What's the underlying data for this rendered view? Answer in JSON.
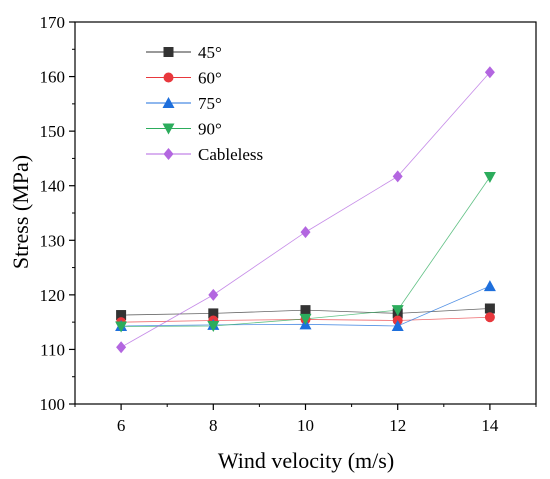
{
  "chart_data": {
    "type": "line",
    "title": "",
    "xlabel": "Wind velocity (m/s)",
    "ylabel": "Stress (MPa)",
    "xlim": [
      5,
      15
    ],
    "ylim": [
      100,
      170
    ],
    "xticks": [
      6,
      8,
      10,
      12,
      14
    ],
    "yticks": [
      100,
      110,
      120,
      130,
      140,
      150,
      160,
      170
    ],
    "grid": false,
    "legend_position": "top-left",
    "x": [
      6,
      8,
      10,
      12,
      14
    ],
    "series": [
      {
        "name": "45°",
        "marker": "square",
        "color": "#333333",
        "values": [
          116.3,
          116.6,
          117.2,
          116.6,
          117.5
        ]
      },
      {
        "name": "60°",
        "marker": "circle",
        "color": "#e8383d",
        "values": [
          115.0,
          115.3,
          115.5,
          115.3,
          115.9
        ]
      },
      {
        "name": "75°",
        "marker": "triangle-up",
        "color": "#1e6fdc",
        "values": [
          114.3,
          114.5,
          114.6,
          114.3,
          121.6
        ]
      },
      {
        "name": "90°",
        "marker": "triangle-down",
        "color": "#2cac5c",
        "values": [
          114.2,
          114.3,
          115.6,
          117.2,
          141.6
        ]
      },
      {
        "name": "Cableless",
        "marker": "diamond",
        "color": "#b366e0",
        "values": [
          110.4,
          120.0,
          131.5,
          141.7,
          160.8
        ]
      }
    ]
  }
}
